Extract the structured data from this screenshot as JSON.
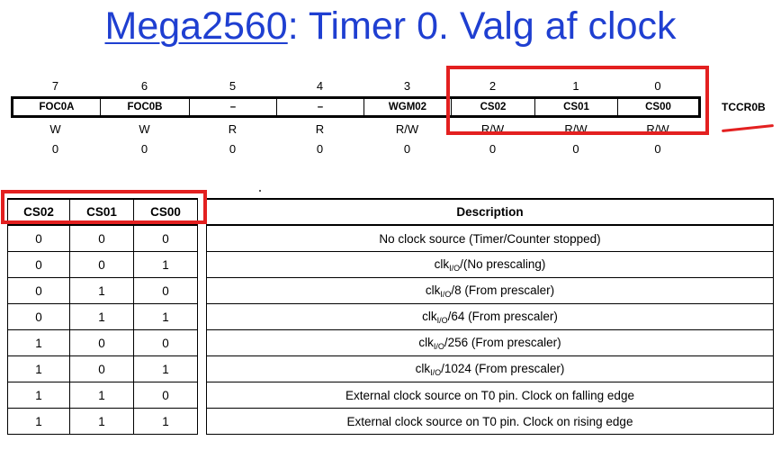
{
  "title": {
    "link": "Mega2560",
    "rest": ": Timer 0. Valg af clock"
  },
  "register": {
    "name": "TCCR0B",
    "bit_numbers": [
      "7",
      "6",
      "5",
      "4",
      "3",
      "2",
      "1",
      "0"
    ],
    "bits": [
      "FOC0A",
      "FOC0B",
      "–",
      "–",
      "WGM02",
      "CS02",
      "CS01",
      "CS00"
    ],
    "access": [
      "W",
      "W",
      "R",
      "R",
      "R/W",
      "R/W",
      "R/W",
      "R/W"
    ],
    "initial": [
      "0",
      "0",
      "0",
      "0",
      "0",
      "0",
      "0",
      "0"
    ]
  },
  "table": {
    "headers": [
      "CS02",
      "CS01",
      "CS00",
      "Description"
    ],
    "rows": [
      {
        "cs02": "0",
        "cs01": "0",
        "cs00": "0",
        "desc": "No clock source (Timer/Counter stopped)"
      },
      {
        "cs02": "0",
        "cs01": "0",
        "cs00": "1",
        "desc_pre": "clk",
        "desc_sub": "I/O",
        "desc_post": "/(No prescaling)"
      },
      {
        "cs02": "0",
        "cs01": "1",
        "cs00": "0",
        "desc_pre": "clk",
        "desc_sub": "I/O",
        "desc_post": "/8 (From prescaler)"
      },
      {
        "cs02": "0",
        "cs01": "1",
        "cs00": "1",
        "desc_pre": "clk",
        "desc_sub": "I/O",
        "desc_post": "/64 (From prescaler)"
      },
      {
        "cs02": "1",
        "cs01": "0",
        "cs00": "0",
        "desc_pre": "clk",
        "desc_sub": "I/O",
        "desc_post": "/256 (From prescaler)"
      },
      {
        "cs02": "1",
        "cs01": "0",
        "cs00": "1",
        "desc_pre": "clk",
        "desc_sub": "I/O",
        "desc_post": "/1024 (From prescaler)"
      },
      {
        "cs02": "1",
        "cs01": "1",
        "cs00": "0",
        "desc": "External clock source on T0 pin. Clock on falling edge"
      },
      {
        "cs02": "1",
        "cs01": "1",
        "cs00": "1",
        "desc": "External clock source on T0 pin. Clock on rising edge"
      }
    ]
  },
  "colors": {
    "title": "#1f3fd1",
    "highlight": "#e32020"
  }
}
